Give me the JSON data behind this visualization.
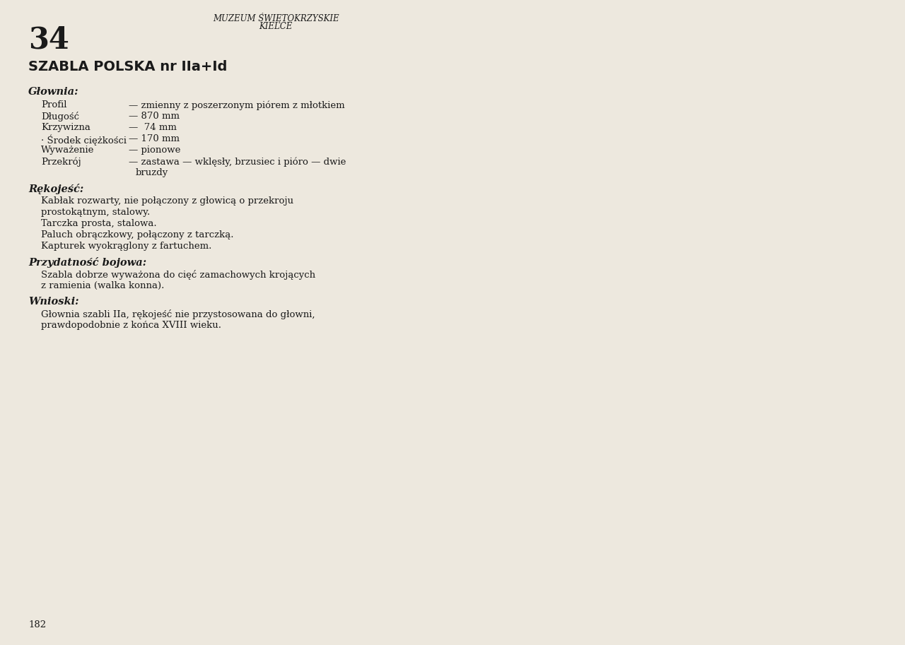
{
  "page_number": "34",
  "museum_line1": "MUZEUM ŚWIĘTOKRZYSKIE",
  "museum_line2": "KIELCE",
  "title": "SZABLA POLSKA nr IIa+Id",
  "section1_header": "Głownia:",
  "section1_items": [
    [
      "Profil",
      "— zmienny z poszerzonym piórem z młotkiem"
    ],
    [
      "Długość",
      "— 870 mm"
    ],
    [
      "Krzywizna",
      "—  74 mm"
    ],
    [
      "· Środek ciężkości",
      "— 170 mm"
    ],
    [
      "Wyważenie",
      "— pionowe"
    ],
    [
      "Przekrój",
      "— zastawa — wklęsły, brzusiec i pióro — dwie bruzdy"
    ]
  ],
  "section2_header": "Rękojeść:",
  "section2_text": [
    "Kabłak rozwarty, nie połączony z głowicą o przekroju",
    "prostokątnym, stalowy.",
    "Tarczka prosta, stalowa.",
    "Paluch obrączkowy, połączony z tarczką.",
    "Kapturek wyokrąglony z fartuchem."
  ],
  "section3_header": "Przydatność bojowa:",
  "section3_text": [
    "Szabla dobrze wyważona do cięć zamachowych krojących",
    "z ramienia (walka konna)."
  ],
  "section4_header": "Wnioski:",
  "section4_text": [
    "Głownia szabli IIa, rękojeść nie przystosowana do głowni,",
    "prawdopodobnie z końca XVIII wieku."
  ],
  "page_footer": "182",
  "bg_color": "#ede8de",
  "text_color": "#1a1a1a",
  "draw_color": "#2a2a2a"
}
